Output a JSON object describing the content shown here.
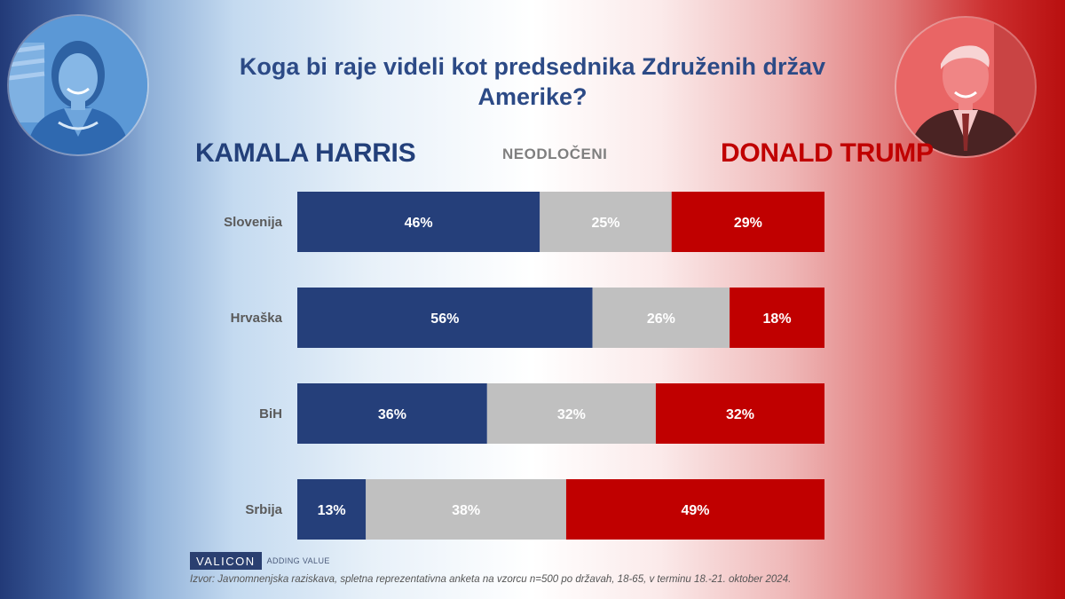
{
  "title": "Koga bi raje videli kot predsednika Združenih držav Amerike?",
  "candidates": {
    "left": "KAMALA HARRIS",
    "middle": "NEODLOČENI",
    "right": "DONALD TRUMP"
  },
  "colors": {
    "harris": "#253f7a",
    "undecided": "#c0c0c0",
    "trump": "#c00000"
  },
  "chart_data": {
    "type": "bar",
    "orientation": "horizontal",
    "stacked": true,
    "categories": [
      "Slovenija",
      "Hrvaška",
      "BiH",
      "Srbija"
    ],
    "series": [
      {
        "name": "KAMALA HARRIS",
        "values": [
          46,
          56,
          36,
          13
        ],
        "color": "#253f7a"
      },
      {
        "name": "NEODLOČENI",
        "values": [
          25,
          26,
          32,
          38
        ],
        "color": "#c0c0c0"
      },
      {
        "name": "DONALD TRUMP",
        "values": [
          29,
          18,
          32,
          49
        ],
        "color": "#c00000"
      }
    ],
    "value_suffix": "%",
    "xlim": [
      0,
      100
    ],
    "grid": false,
    "legend": "top"
  },
  "brand": {
    "name": "VALICON",
    "tagline": "ADDING VALUE"
  },
  "source": "Izvor: Javnomnenjska raziskava, spletna reprezentativna anketa na vzorcu n=500 po državah, 18-65, v terminu 18.-21. oktober 2024."
}
